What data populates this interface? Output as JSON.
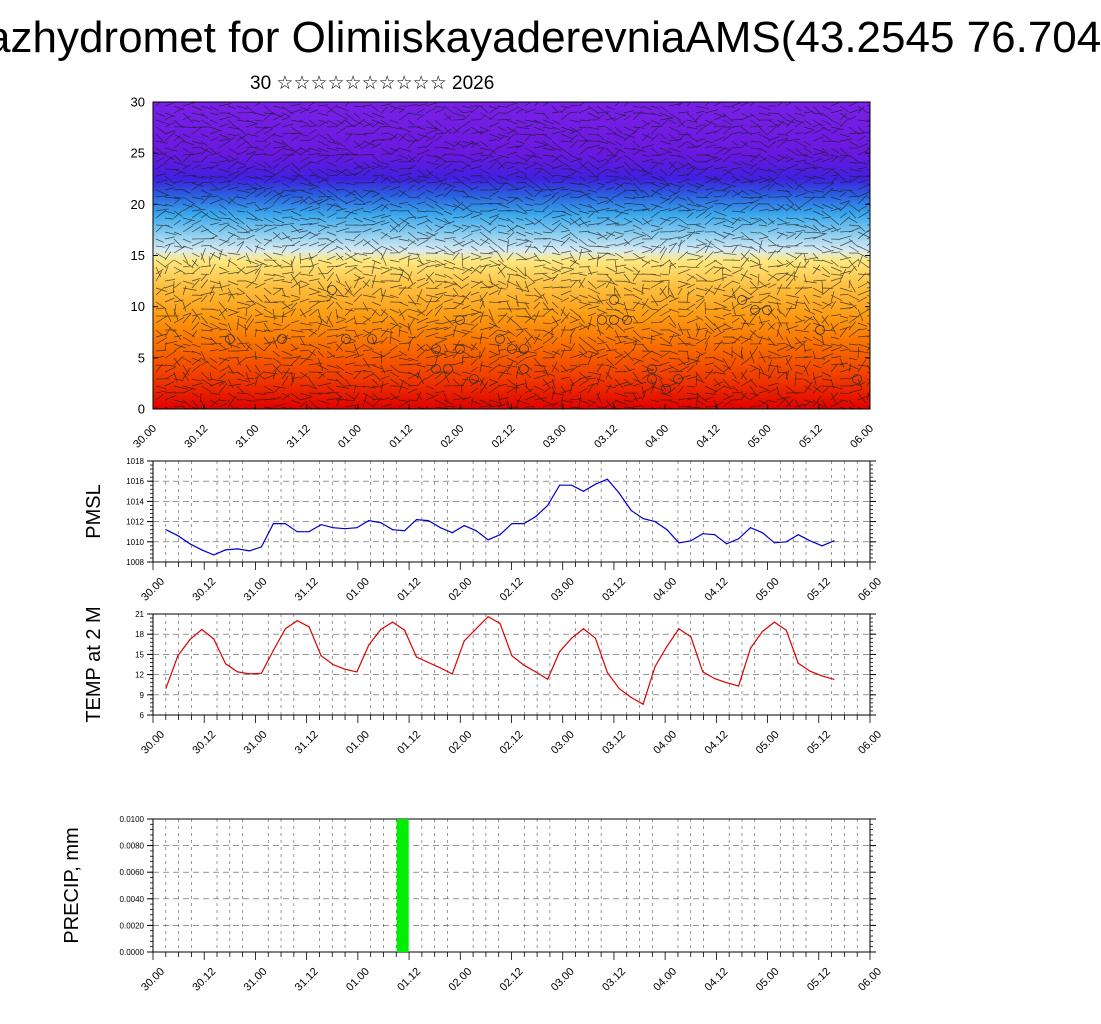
{
  "header": {
    "title": "azhydromet for OlimiiskayaderevniaAMS(43.2545 76.704",
    "subtitle": "30 ☆☆☆☆☆☆☆☆☆☆ 2026"
  },
  "colors": {
    "pmsl_line": "#0000cc",
    "temp_line": "#dd0000",
    "precip_bar": "#00ee00",
    "grid": "#555555"
  },
  "chart_data": [
    {
      "type": "heatmap",
      "name": "cross-section",
      "ylabel": "",
      "ylim": [
        0,
        30
      ],
      "yticks": [
        "0",
        "5",
        "10",
        "15",
        "20",
        "25",
        "30"
      ],
      "xticks": [
        "30.00",
        "30.12",
        "31.00",
        "31.12",
        "01.00",
        "01.12",
        "02.00",
        "02.12",
        "03.00",
        "03.12",
        "04.00",
        "04.12",
        "05.00",
        "05.12",
        "06.00"
      ],
      "layers": [
        {
          "level": 0,
          "color": "#e00000"
        },
        {
          "level": 3,
          "color": "#f03a00"
        },
        {
          "level": 6,
          "color": "#f86a00"
        },
        {
          "level": 9,
          "color": "#fc9a10"
        },
        {
          "level": 12,
          "color": "#fdc040"
        },
        {
          "level": 14.5,
          "color": "#fde880"
        },
        {
          "level": 15.5,
          "color": "#d8eaf0"
        },
        {
          "level": 17,
          "color": "#90cff0"
        },
        {
          "level": 19,
          "color": "#3aa8ec"
        },
        {
          "level": 21,
          "color": "#2a5ce0"
        },
        {
          "level": 22.5,
          "color": "#4020e0"
        },
        {
          "level": 25,
          "color": "#6a18e0"
        },
        {
          "level": 31,
          "color": "#7a20e8"
        }
      ]
    },
    {
      "type": "line",
      "name": "pmsl",
      "ylabel": "PMSL",
      "ylim": [
        1008,
        1018
      ],
      "yticks": [
        "1008",
        "1010",
        "1012",
        "1014",
        "1016",
        "1018"
      ],
      "xticks": [
        "30.00",
        "30.12",
        "31.00",
        "31.12",
        "01.00",
        "01.12",
        "02.00",
        "02.12",
        "03.00",
        "03.12",
        "04.00",
        "04.12",
        "05.00",
        "05.12",
        "06.00"
      ],
      "series": [
        {
          "name": "PMSL",
          "values": [
            1011.2,
            1010.6,
            1009.8,
            1009.2,
            1008.7,
            1009.2,
            1009.3,
            1009.1,
            1009.5,
            1011.8,
            1011.8,
            1011.0,
            1011.0,
            1011.7,
            1011.4,
            1011.3,
            1011.4,
            1012.1,
            1011.9,
            1011.2,
            1011.1,
            1012.2,
            1012.1,
            1011.4,
            1010.9,
            1011.6,
            1011.1,
            1010.2,
            1010.7,
            1011.8,
            1011.8,
            1012.5,
            1013.6,
            1015.6,
            1015.6,
            1015.0,
            1015.7,
            1016.2,
            1014.8,
            1013.1,
            1012.3,
            1012.0,
            1011.2,
            1009.9,
            1010.1,
            1010.8,
            1010.7,
            1009.8,
            1010.3,
            1011.4,
            1010.9,
            1009.9,
            1010.0,
            1010.7,
            1010.1,
            1009.6,
            1010.1
          ]
        }
      ]
    },
    {
      "type": "line",
      "name": "temp",
      "ylabel": "TEMP at 2 M",
      "ylim": [
        6,
        21
      ],
      "yticks": [
        "6",
        "9",
        "12",
        "15",
        "18",
        "21"
      ],
      "xticks": [
        "30.00",
        "30.12",
        "31.00",
        "31.12",
        "01.00",
        "01.12",
        "02.00",
        "02.12",
        "03.00",
        "03.12",
        "04.00",
        "04.12",
        "05.00",
        "05.12",
        "06.00"
      ],
      "series": [
        {
          "name": "TEMP",
          "values": [
            10.0,
            14.8,
            17.2,
            18.7,
            17.3,
            13.6,
            12.4,
            12.1,
            12.2,
            15.6,
            18.8,
            20.0,
            19.1,
            14.8,
            13.5,
            12.8,
            12.4,
            16.4,
            18.7,
            19.8,
            18.6,
            14.6,
            13.8,
            13.0,
            12.1,
            17.0,
            18.8,
            20.6,
            19.6,
            14.8,
            13.4,
            12.4,
            11.3,
            15.4,
            17.4,
            18.8,
            17.4,
            12.3,
            9.9,
            8.6,
            7.6,
            13.2,
            16.2,
            18.8,
            17.6,
            12.4,
            11.4,
            10.8,
            10.3,
            15.9,
            18.4,
            19.8,
            18.6,
            13.7,
            12.5,
            11.8,
            11.3
          ]
        }
      ]
    },
    {
      "type": "bar",
      "name": "precip",
      "ylabel": "PRECIP, mm",
      "ylim": [
        0,
        0.01
      ],
      "yticks": [
        "0.0000",
        "0.0020",
        "0.0040",
        "0.0060",
        "0.0080",
        "0.0100"
      ],
      "xticks": [
        "30.00",
        "30.12",
        "31.00",
        "31.12",
        "01.00",
        "01.12",
        "02.00",
        "02.12",
        "03.00",
        "03.12",
        "04.00",
        "04.12",
        "05.00",
        "05.12",
        "06.00"
      ],
      "bars": [
        {
          "x_index": 4.7,
          "value": 0.01
        }
      ]
    }
  ]
}
